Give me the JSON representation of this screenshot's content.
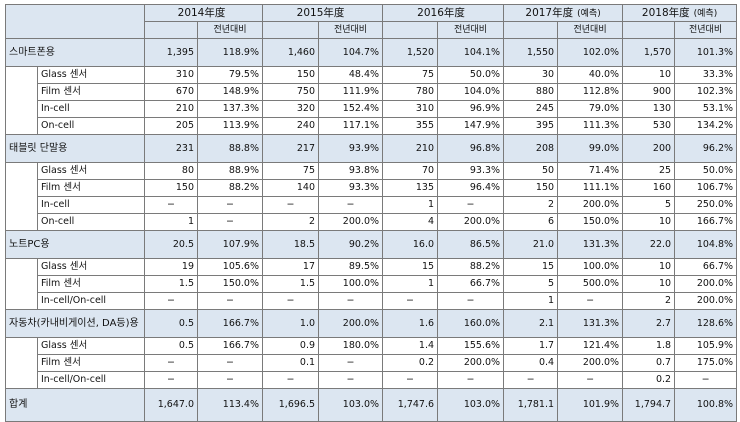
{
  "header": {
    "years": [
      {
        "label": "2014年度",
        "note": ""
      },
      {
        "label": "2015年度",
        "note": ""
      },
      {
        "label": "2016年度",
        "note": ""
      },
      {
        "label": "2017年度",
        "note": "(예측)"
      },
      {
        "label": "2018年度",
        "note": "(예측)"
      }
    ],
    "sub_label": "전년대비"
  },
  "groups": [
    {
      "name": "스마트폰용",
      "values": [
        "1,395",
        "118.9%",
        "1,460",
        "104.7%",
        "1,520",
        "104.1%",
        "1,550",
        "102.0%",
        "1,570",
        "101.3%"
      ],
      "items": [
        {
          "name": "Glass  센서",
          "values": [
            "310",
            "79.5%",
            "150",
            "48.4%",
            "75",
            "50.0%",
            "30",
            "40.0%",
            "10",
            "33.3%"
          ]
        },
        {
          "name": "Film  센서",
          "values": [
            "670",
            "148.9%",
            "750",
            "111.9%",
            "780",
            "104.0%",
            "880",
            "112.8%",
            "900",
            "102.3%"
          ]
        },
        {
          "name": "In-cell",
          "values": [
            "210",
            "137.3%",
            "320",
            "152.4%",
            "310",
            "96.9%",
            "245",
            "79.0%",
            "130",
            "53.1%"
          ]
        },
        {
          "name": "On-cell",
          "values": [
            "205",
            "113.9%",
            "240",
            "117.1%",
            "355",
            "147.9%",
            "395",
            "111.3%",
            "530",
            "134.2%"
          ]
        }
      ]
    },
    {
      "name": "태블릿 단말용",
      "values": [
        "231",
        "88.8%",
        "217",
        "93.9%",
        "210",
        "96.8%",
        "208",
        "99.0%",
        "200",
        "96.2%"
      ],
      "items": [
        {
          "name": "Glass  센서",
          "values": [
            "80",
            "88.9%",
            "75",
            "93.8%",
            "70",
            "93.3%",
            "50",
            "71.4%",
            "25",
            "50.0%"
          ]
        },
        {
          "name": "Film  센서",
          "values": [
            "150",
            "88.2%",
            "140",
            "93.3%",
            "135",
            "96.4%",
            "150",
            "111.1%",
            "160",
            "106.7%"
          ]
        },
        {
          "name": "In-cell",
          "values": [
            "−",
            "−",
            "−",
            "−",
            "1",
            "−",
            "2",
            "200.0%",
            "5",
            "250.0%"
          ]
        },
        {
          "name": "On-cell",
          "values": [
            "1",
            "−",
            "2",
            "200.0%",
            "4",
            "200.0%",
            "6",
            "150.0%",
            "10",
            "166.7%"
          ]
        }
      ]
    },
    {
      "name": "노트PC용",
      "values": [
        "20.5",
        "107.9%",
        "18.5",
        "90.2%",
        "16.0",
        "86.5%",
        "21.0",
        "131.3%",
        "22.0",
        "104.8%"
      ],
      "items": [
        {
          "name": "Glass  센서",
          "values": [
            "19",
            "105.6%",
            "17",
            "89.5%",
            "15",
            "88.2%",
            "15",
            "100.0%",
            "10",
            "66.7%"
          ]
        },
        {
          "name": "Film  센서",
          "values": [
            "1.5",
            "150.0%",
            "1.5",
            "100.0%",
            "1",
            "66.7%",
            "5",
            "500.0%",
            "10",
            "200.0%"
          ]
        },
        {
          "name": "In-cell/On-cell",
          "values": [
            "−",
            "−",
            "−",
            "−",
            "−",
            "−",
            "1",
            "−",
            "2",
            "200.0%"
          ]
        }
      ]
    },
    {
      "name": "자동차(카내비게이션, DA등)용",
      "values": [
        "0.5",
        "166.7%",
        "1.0",
        "200.0%",
        "1.6",
        "160.0%",
        "2.1",
        "131.3%",
        "2.7",
        "128.6%"
      ],
      "items": [
        {
          "name": "Glass  센서",
          "values": [
            "0.5",
            "166.7%",
            "0.9",
            "180.0%",
            "1.4",
            "155.6%",
            "1.7",
            "121.4%",
            "1.8",
            "105.9%"
          ]
        },
        {
          "name": "Film  센서",
          "values": [
            "−",
            "−",
            "0.1",
            "−",
            "0.2",
            "200.0%",
            "0.4",
            "200.0%",
            "0.7",
            "175.0%"
          ]
        },
        {
          "name": "In-cell/On-cell",
          "values": [
            "−",
            "−",
            "−",
            "−",
            "−",
            "−",
            "−",
            "−",
            "0.2",
            "−"
          ]
        }
      ]
    }
  ],
  "total": {
    "name": "합계",
    "values": [
      "1,647.0",
      "113.4%",
      "1,696.5",
      "103.0%",
      "1,747.6",
      "103.0%",
      "1,781.1",
      "101.9%",
      "1,794.7",
      "100.8%"
    ]
  }
}
